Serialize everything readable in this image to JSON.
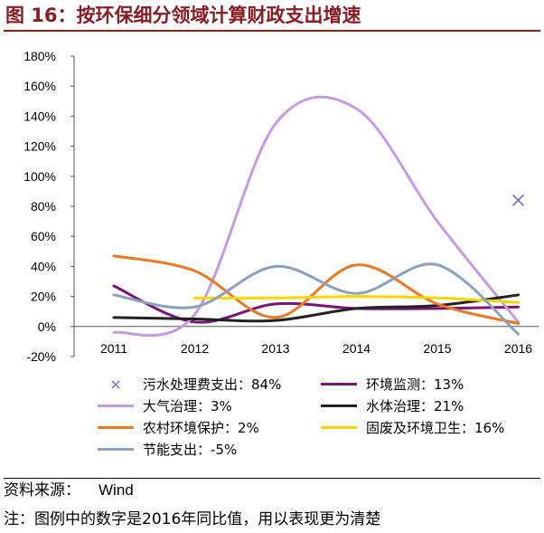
{
  "title": "图 16：按环保细分领域计算财政支出增速",
  "source": {
    "label": "资料来源：",
    "value": "Wind"
  },
  "note": "注：图例中的数字是2016年同比值，用以表现更为清楚",
  "chart_data": {
    "type": "line",
    "categories": [
      "2011",
      "2012",
      "2013",
      "2014",
      "2015",
      "2016"
    ],
    "y_ticks": [
      "180%",
      "160%",
      "140%",
      "120%",
      "100%",
      "80%",
      "60%",
      "40%",
      "20%",
      "0%",
      "-20%"
    ],
    "ylim": [
      -20,
      180
    ],
    "grid": false,
    "legend_position": "bottom",
    "series": [
      {
        "name": "污水处理费支出：84%",
        "marker": "x",
        "color": "#6e6bbd",
        "values": [
          null,
          null,
          null,
          null,
          null,
          84
        ]
      },
      {
        "name": "环境监测：13%",
        "color": "#7b1378",
        "values": [
          27,
          3,
          15,
          12,
          12,
          13
        ]
      },
      {
        "name": "大气治理：3%",
        "color": "#c79ae8",
        "values": [
          -4,
          8,
          135,
          145,
          70,
          3
        ]
      },
      {
        "name": "水体治理：21%",
        "color": "#222222",
        "values": [
          6,
          5,
          4,
          12,
          14,
          21
        ]
      },
      {
        "name": "农村环境保护：2%",
        "color": "#f07822",
        "values": [
          47,
          37,
          6,
          41,
          15,
          2
        ]
      },
      {
        "name": "固废及环境卫生：16%",
        "color": "#ffd400",
        "values": [
          null,
          19,
          19,
          20,
          19,
          16
        ]
      },
      {
        "name": "节能支出：-5%",
        "color": "#8aa1bf",
        "values": [
          21,
          13,
          40,
          22,
          41,
          -5
        ]
      }
    ]
  }
}
